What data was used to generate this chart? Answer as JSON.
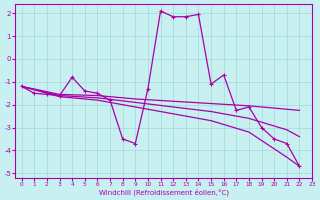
{
  "xlabel": "Windchill (Refroidissement éolien,°C)",
  "xlim": [
    -0.5,
    23
  ],
  "ylim": [
    -5.2,
    2.4
  ],
  "yticks": [
    2,
    1,
    0,
    -1,
    -2,
    -3,
    -4,
    -5
  ],
  "xticks": [
    0,
    1,
    2,
    3,
    4,
    5,
    6,
    7,
    8,
    9,
    10,
    11,
    12,
    13,
    14,
    15,
    16,
    17,
    18,
    19,
    20,
    21,
    22,
    23
  ],
  "bg_color": "#c8f0f0",
  "grid_color": "#a0d8d8",
  "line_color": "#aa00aa",
  "series_main": {
    "x": [
      0,
      1,
      2,
      3,
      4,
      5,
      6,
      7,
      8,
      9,
      10,
      11,
      12,
      13,
      14,
      15,
      16,
      17,
      18,
      19,
      20,
      21,
      22
    ],
    "y": [
      -1.2,
      -1.5,
      -1.55,
      -1.6,
      -0.8,
      -1.4,
      -1.5,
      -1.8,
      -3.5,
      -3.7,
      -1.3,
      2.1,
      1.85,
      1.85,
      1.95,
      -1.1,
      -0.7,
      -2.25,
      -2.1,
      -3.0,
      -3.5,
      -3.7,
      -4.7
    ]
  },
  "series_smooth": [
    {
      "x": [
        0,
        3,
        6,
        9,
        12,
        15,
        18,
        21,
        22
      ],
      "y": [
        -1.2,
        -1.55,
        -1.6,
        -1.75,
        -1.85,
        -1.95,
        -2.05,
        -2.2,
        -2.25
      ]
    },
    {
      "x": [
        0,
        3,
        6,
        9,
        12,
        15,
        18,
        21,
        22
      ],
      "y": [
        -1.2,
        -1.6,
        -1.7,
        -1.9,
        -2.1,
        -2.3,
        -2.6,
        -3.1,
        -3.4
      ]
    },
    {
      "x": [
        0,
        3,
        6,
        9,
        12,
        15,
        18,
        21,
        22
      ],
      "y": [
        -1.2,
        -1.65,
        -1.8,
        -2.1,
        -2.4,
        -2.7,
        -3.2,
        -4.3,
        -4.7
      ]
    }
  ]
}
